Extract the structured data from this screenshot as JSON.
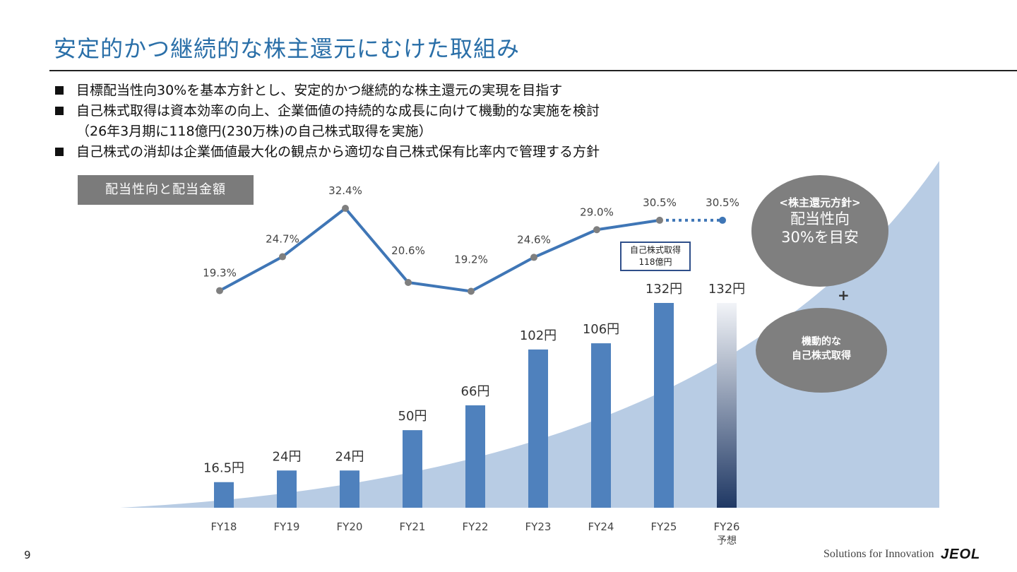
{
  "page": {
    "title": "安定的かつ継続的な株主還元にむけた取組み",
    "page_number": "9",
    "footer_tagline": "Solutions for Innovation",
    "footer_logo": "JEOL"
  },
  "bullets": [
    "目標配当性向30%を基本方針とし、安定的かつ継続的な株主還元の実現を目指す",
    "自己株式取得は資本効率の向上、企業価値の持続的な成長に向けて機動的な実施を検討",
    "（26年3月期に118億円(230万株)の自己株式取得を実施）",
    "自己株式の消却は企業価値最大化の観点から適切な自己株式保有比率内で管理する方針"
  ],
  "chart_label": "配当性向と配当金額",
  "policy_box": {
    "heading": "<株主還元方針>",
    "line1": "配当性向",
    "line2": "30%を目安"
  },
  "plus_sign": "+",
  "buyback_box": {
    "line1": "機動的な",
    "line2": "自己株式取得"
  },
  "callout": {
    "line1": "自己株式取得",
    "line2": "118億円"
  },
  "colors": {
    "title": "#2a6fa8",
    "bar": "#4f81bd",
    "line": "#3f76b6",
    "marker": "#7f7f7f",
    "area": "#b8cce4",
    "forecast_bar_top": "#f2f4f8",
    "forecast_bar_bottom": "#1f3864",
    "ellipse": "#7f7f7f"
  },
  "chart_data": {
    "type": "bar",
    "categories": [
      "FY18",
      "FY19",
      "FY20",
      "FY21",
      "FY22",
      "FY23",
      "FY24",
      "FY25",
      "FY26"
    ],
    "category_sublabels": [
      "",
      "",
      "",
      "",
      "",
      "",
      "",
      "",
      "予想"
    ],
    "series": [
      {
        "type": "bar",
        "values": [
          16.5,
          24,
          24,
          50,
          66,
          102,
          106,
          132,
          132
        ],
        "labels": [
          "16.5円",
          "24円",
          "24円",
          "50円",
          "66円",
          "102円",
          "106円",
          "132円",
          "132円"
        ],
        "forecast_index": 8
      },
      {
        "type": "line",
        "values": [
          19.3,
          24.7,
          32.4,
          20.6,
          19.2,
          24.6,
          29.0,
          30.5,
          30.5
        ],
        "labels": [
          "19.3%",
          "24.7%",
          "32.4%",
          "20.6%",
          "19.2%",
          "24.6%",
          "29.0%",
          "30.5%",
          "30.5%"
        ],
        "forecast_index": 8
      }
    ]
  }
}
